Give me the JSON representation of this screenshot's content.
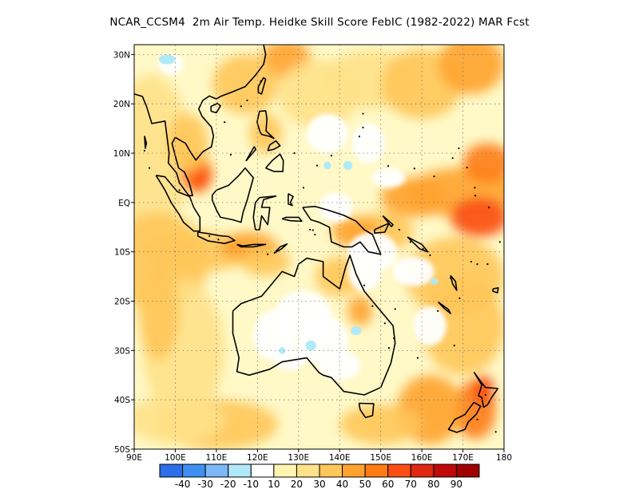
{
  "title": "NCAR_CCSM4  2m Air Temp. Heidke Skill Score FebIC (1982-2022) MAR Fcst",
  "map": {
    "lon_range": [
      90,
      180
    ],
    "lat_range": [
      -50,
      32
    ],
    "grid": true,
    "x_ticks": [
      {
        "value": 90,
        "label": "90E"
      },
      {
        "value": 100,
        "label": "100E"
      },
      {
        "value": 110,
        "label": "110E"
      },
      {
        "value": 120,
        "label": "120E"
      },
      {
        "value": 130,
        "label": "130E"
      },
      {
        "value": 140,
        "label": "140E"
      },
      {
        "value": 150,
        "label": "150E"
      },
      {
        "value": 160,
        "label": "160E"
      },
      {
        "value": 170,
        "label": "170E"
      },
      {
        "value": 180,
        "label": "180"
      }
    ],
    "y_ticks": [
      {
        "value": 30,
        "label": "30N"
      },
      {
        "value": 20,
        "label": "20N"
      },
      {
        "value": 10,
        "label": "10N"
      },
      {
        "value": 0,
        "label": "EQ"
      },
      {
        "value": -10,
        "label": "10S"
      },
      {
        "value": -20,
        "label": "20S"
      },
      {
        "value": -30,
        "label": "30S"
      },
      {
        "value": -40,
        "label": "40S"
      },
      {
        "value": -50,
        "label": "50S"
      }
    ]
  },
  "colorbar": {
    "colors": [
      "#2a6ee8",
      "#3e8ff0",
      "#7cb8f8",
      "#b0eaf8",
      "#ffffff",
      "#fff5b0",
      "#ffe28a",
      "#ffc659",
      "#ffa32e",
      "#ff7c14",
      "#fb4e12",
      "#e02812",
      "#c00a08",
      "#a00000"
    ],
    "labels": [
      "-40",
      "-30",
      "-20",
      "-10",
      "10",
      "20",
      "30",
      "40",
      "50",
      "60",
      "70",
      "80",
      "90"
    ]
  }
}
